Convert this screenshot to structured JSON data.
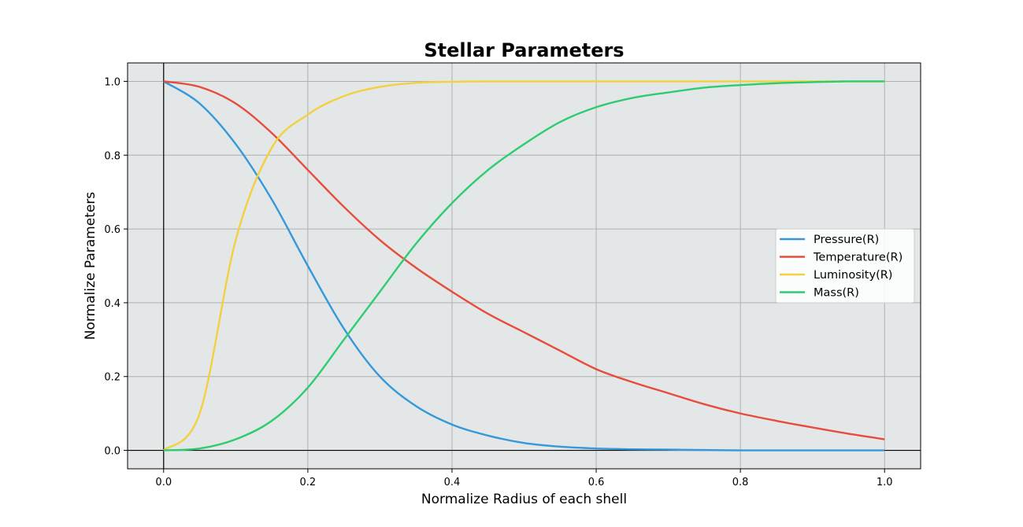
{
  "chart_data": {
    "type": "line",
    "title": "Stellar Parameters",
    "xlabel": "Normalize Radius of each shell",
    "ylabel": "Normalize Parameters",
    "xlim": [
      -0.05,
      1.05
    ],
    "ylim": [
      -0.05,
      1.05
    ],
    "xticks": [
      0.0,
      0.2,
      0.4,
      0.6,
      0.8,
      1.0
    ],
    "xtick_labels": [
      "0.0",
      "0.2",
      "0.4",
      "0.6",
      "0.8",
      "1.0"
    ],
    "yticks": [
      0.0,
      0.2,
      0.4,
      0.6,
      0.8,
      1.0
    ],
    "ytick_labels": [
      "0.0",
      "0.2",
      "0.4",
      "0.6",
      "0.8",
      "1.0"
    ],
    "grid": true,
    "legend_position": "center-right",
    "background_color": "#e3e7e8",
    "x": [
      0.0,
      0.05,
      0.1,
      0.15,
      0.2,
      0.25,
      0.3,
      0.35,
      0.4,
      0.45,
      0.5,
      0.55,
      0.6,
      0.65,
      0.7,
      0.75,
      0.8,
      0.85,
      0.9,
      0.95,
      1.0
    ],
    "series": [
      {
        "name": "Pressure(R)",
        "color": "#3498db",
        "values": [
          1.0,
          0.94,
          0.83,
          0.68,
          0.5,
          0.33,
          0.2,
          0.12,
          0.07,
          0.04,
          0.02,
          0.01,
          0.005,
          0.003,
          0.002,
          0.001,
          0.0,
          0.0,
          0.0,
          0.0,
          0.0
        ]
      },
      {
        "name": "Temperature(R)",
        "color": "#e74c3c",
        "values": [
          1.0,
          0.985,
          0.94,
          0.86,
          0.76,
          0.66,
          0.57,
          0.495,
          0.43,
          0.37,
          0.32,
          0.27,
          0.22,
          0.185,
          0.155,
          0.125,
          0.1,
          0.08,
          0.062,
          0.045,
          0.03
        ]
      },
      {
        "name": "Luminosity(R)",
        "color": "#f4d03f",
        "values": [
          0.0,
          0.1,
          0.57,
          0.82,
          0.91,
          0.96,
          0.985,
          0.996,
          0.999,
          1.0,
          1.0,
          1.0,
          1.0,
          1.0,
          1.0,
          1.0,
          1.0,
          1.0,
          1.0,
          1.0,
          1.0
        ]
      },
      {
        "name": "Mass(R)",
        "color": "#2ecc71",
        "values": [
          0.0,
          0.005,
          0.03,
          0.08,
          0.17,
          0.3,
          0.43,
          0.56,
          0.67,
          0.76,
          0.83,
          0.89,
          0.93,
          0.955,
          0.97,
          0.983,
          0.99,
          0.995,
          0.998,
          1.0,
          1.0
        ]
      }
    ]
  }
}
